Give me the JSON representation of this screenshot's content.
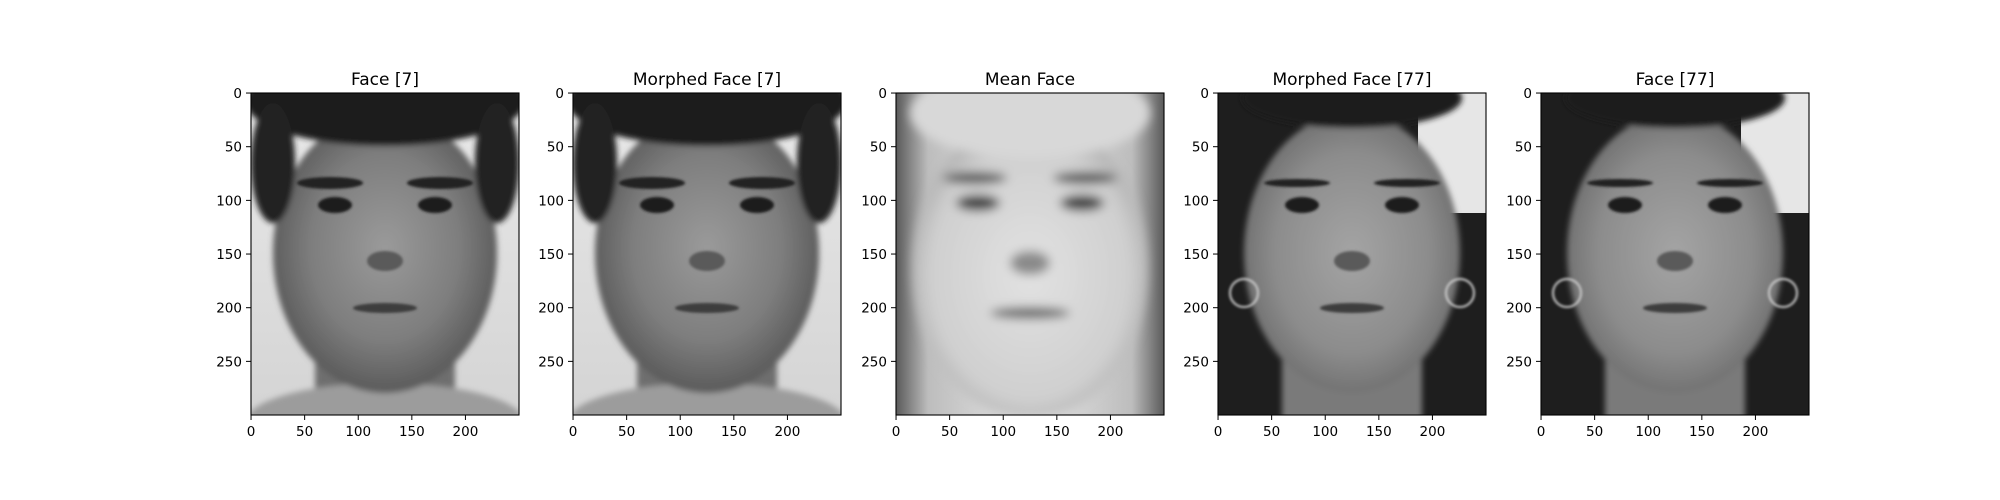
{
  "figure": {
    "background": "#ffffff",
    "panels": [
      {
        "title": "Face [7]",
        "image": "grayscale portrait photo of a man with short dark curly hair",
        "tone": "face-male"
      },
      {
        "title": "Morphed Face [7]",
        "image": "grayscale portrait of the same man, warped to mean face shape",
        "tone": "face-male"
      },
      {
        "title": "Mean Face",
        "image": "blurred grayscale average face",
        "tone": "face-mean"
      },
      {
        "title": "Morphed Face [77]",
        "image": "grayscale portrait of a woman with long dark hair and hoop earrings, warped to mean face shape",
        "tone": "face-female"
      },
      {
        "title": "Face [77]",
        "image": "grayscale portrait photo of a woman with long dark hair and hoop earrings",
        "tone": "face-female"
      }
    ],
    "x_ticks": [
      "0",
      "50",
      "100",
      "150",
      "200"
    ],
    "y_ticks": [
      "0",
      "50",
      "100",
      "150",
      "200",
      "250"
    ],
    "x_tick_values": [
      0,
      50,
      100,
      150,
      200
    ],
    "y_tick_values": [
      0,
      50,
      100,
      150,
      200,
      250
    ],
    "image_width": 250,
    "image_height": 300,
    "colormap": "gray"
  }
}
